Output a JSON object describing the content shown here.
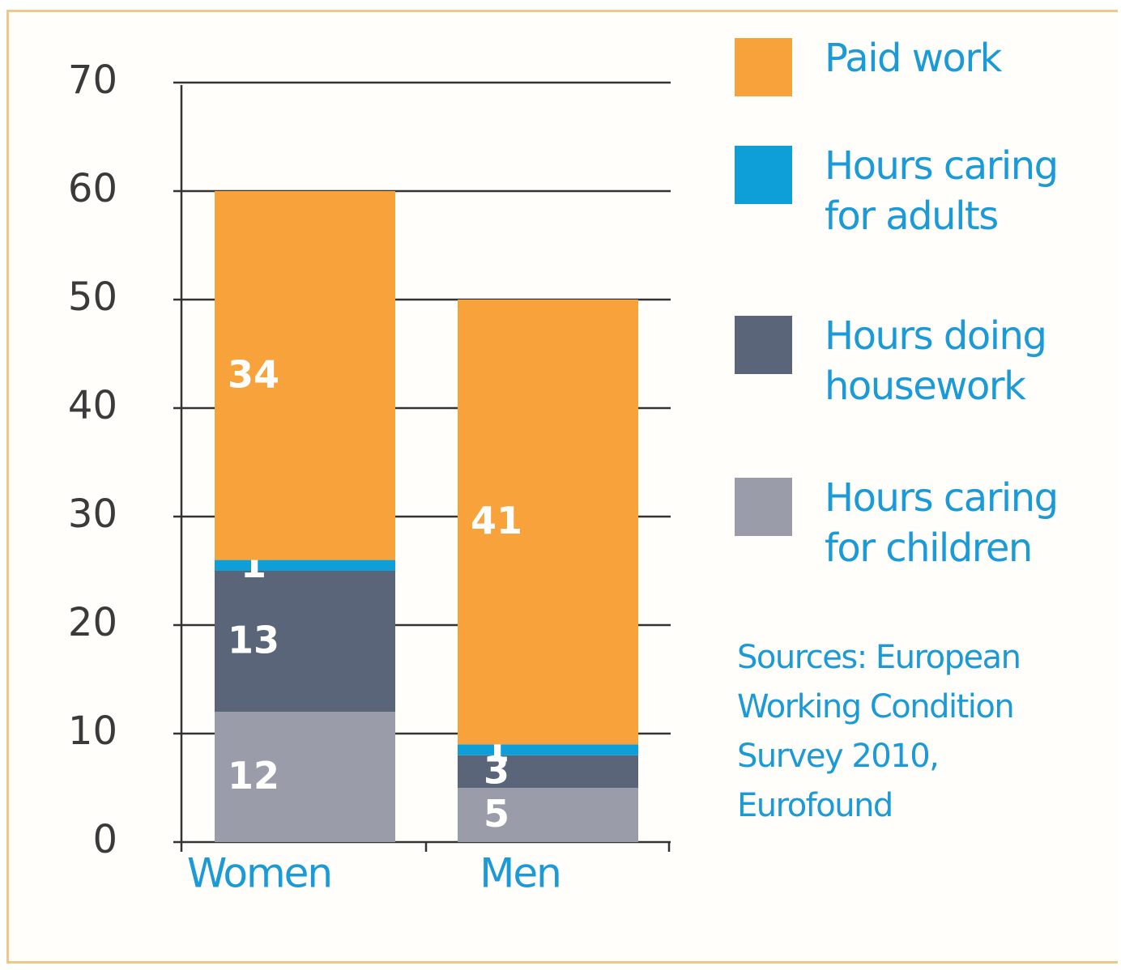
{
  "chart_data": {
    "type": "stacked_bar",
    "categories": [
      "Women",
      "Men"
    ],
    "series": [
      {
        "name": "Hours caring for children",
        "color": "#9a9ca9",
        "values": [
          12,
          5
        ]
      },
      {
        "name": "Hours doing housework",
        "color": "#5b6579",
        "values": [
          13,
          3
        ]
      },
      {
        "name": "Hours caring for adults",
        "color": "#0e9fd8",
        "values": [
          1,
          1
        ]
      },
      {
        "name": "Paid work",
        "color": "#f8a23b",
        "values": [
          34,
          41
        ]
      }
    ],
    "ylim": [
      0,
      70
    ],
    "yticks": [
      0,
      10,
      20,
      30,
      40,
      50,
      60,
      70
    ],
    "grid": true,
    "legend": "right",
    "source": "Sources: European Working Condition Survey 2010, Eurofound"
  }
}
